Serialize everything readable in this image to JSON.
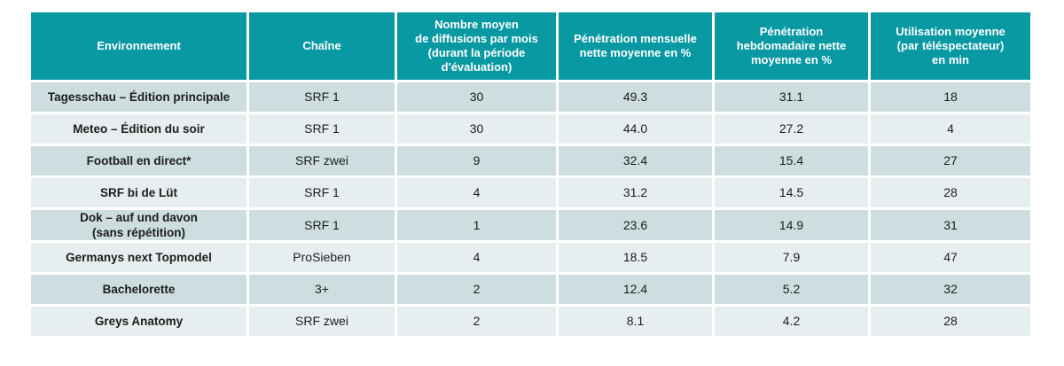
{
  "colors": {
    "header_bg": "#0999a3",
    "header_text": "#ffffff",
    "row_odd": "#cddde0",
    "row_even": "#e7eef0",
    "body_text": "#1d1d1b"
  },
  "table": {
    "columns": [
      "Environnement",
      "Chaîne",
      "Nombre moyen\nde diffusions par mois\n(durant la période\nd'évaluation)",
      "Pénétration mensuelle\nnette moyenne en %",
      "Pénétration\nhebdomadaire nette\nmoyenne en %",
      "Utilisation moyenne\n(par téléspectateur)\nen min"
    ],
    "rows": [
      [
        "Tagesschau – Édition principale",
        "SRF 1",
        "30",
        "49.3",
        "31.1",
        "18"
      ],
      [
        "Meteo – Édition du soir",
        "SRF 1",
        "30",
        "44.0",
        "27.2",
        "4"
      ],
      [
        "Football en direct*",
        "SRF zwei",
        "9",
        "32.4",
        "15.4",
        "27"
      ],
      [
        "SRF bi de Lüt",
        "SRF 1",
        "4",
        "31.2",
        "14.5",
        "28"
      ],
      [
        "Dok – auf und davon\n(sans répétition)",
        "SRF 1",
        "1",
        "23.6",
        "14.9",
        "31"
      ],
      [
        "Germanys next Topmodel",
        "ProSieben",
        "4",
        "18.5",
        "7.9",
        "47"
      ],
      [
        "Bachelorette",
        "3+",
        "2",
        "12.4",
        "5.2",
        "32"
      ],
      [
        "Greys Anatomy",
        "SRF zwei",
        "2",
        "8.1",
        "4.2",
        "28"
      ]
    ]
  },
  "chart_data": {
    "type": "table",
    "title": "",
    "columns": [
      "Environnement",
      "Chaîne",
      "Nombre moyen de diffusions par mois (durant la période d'évaluation)",
      "Pénétration mensuelle nette moyenne en %",
      "Pénétration hebdomadaire nette moyenne en %",
      "Utilisation moyenne (par téléspectateur) en min"
    ],
    "rows": [
      {
        "environnement": "Tagesschau – Édition principale",
        "chaine": "SRF 1",
        "diffusions_par_mois": 30,
        "penetration_mensuelle_pct": 49.3,
        "penetration_hebdomadaire_pct": 31.1,
        "utilisation_min": 18
      },
      {
        "environnement": "Meteo – Édition du soir",
        "chaine": "SRF 1",
        "diffusions_par_mois": 30,
        "penetration_mensuelle_pct": 44.0,
        "penetration_hebdomadaire_pct": 27.2,
        "utilisation_min": 4
      },
      {
        "environnement": "Football en direct*",
        "chaine": "SRF zwei",
        "diffusions_par_mois": 9,
        "penetration_mensuelle_pct": 32.4,
        "penetration_hebdomadaire_pct": 15.4,
        "utilisation_min": 27
      },
      {
        "environnement": "SRF bi de Lüt",
        "chaine": "SRF 1",
        "diffusions_par_mois": 4,
        "penetration_mensuelle_pct": 31.2,
        "penetration_hebdomadaire_pct": 14.5,
        "utilisation_min": 28
      },
      {
        "environnement": "Dok – auf und davon (sans répétition)",
        "chaine": "SRF 1",
        "diffusions_par_mois": 1,
        "penetration_mensuelle_pct": 23.6,
        "penetration_hebdomadaire_pct": 14.9,
        "utilisation_min": 31
      },
      {
        "environnement": "Germanys next Topmodel",
        "chaine": "ProSieben",
        "diffusions_par_mois": 4,
        "penetration_mensuelle_pct": 18.5,
        "penetration_hebdomadaire_pct": 7.9,
        "utilisation_min": 47
      },
      {
        "environnement": "Bachelorette",
        "chaine": "3+",
        "diffusions_par_mois": 2,
        "penetration_mensuelle_pct": 12.4,
        "penetration_hebdomadaire_pct": 5.2,
        "utilisation_min": 32
      },
      {
        "environnement": "Greys Anatomy",
        "chaine": "SRF zwei",
        "diffusions_par_mois": 2,
        "penetration_mensuelle_pct": 8.1,
        "penetration_hebdomadaire_pct": 4.2,
        "utilisation_min": 28
      }
    ]
  }
}
